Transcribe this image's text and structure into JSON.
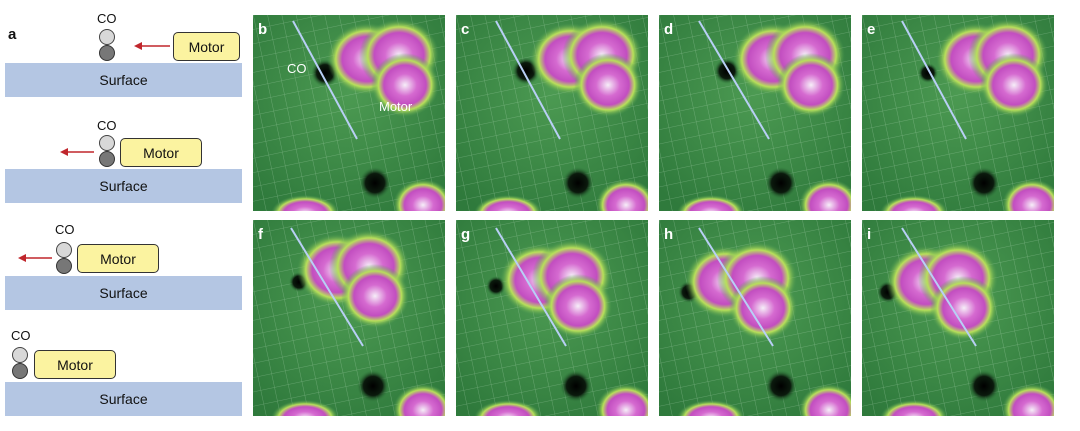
{
  "figure": {
    "panel_a": {
      "label": "a",
      "co_label": "CO",
      "motor_label": "Motor",
      "surface_label": "Surface"
    },
    "stm_panels": [
      {
        "label": "b",
        "co_label": "CO",
        "motor_label": "Motor"
      },
      {
        "label": "c"
      },
      {
        "label": "d"
      },
      {
        "label": "e"
      },
      {
        "label": "f"
      },
      {
        "label": "g"
      },
      {
        "label": "h"
      },
      {
        "label": "i"
      }
    ]
  },
  "colors": {
    "surface": "#b4c6e3",
    "motor_box": "#fbf3a0",
    "arrow": "#c0262c",
    "stm_background": "#3f8a48",
    "molecule_core": "#c94fc4",
    "guide_line": "#b8cff5"
  }
}
